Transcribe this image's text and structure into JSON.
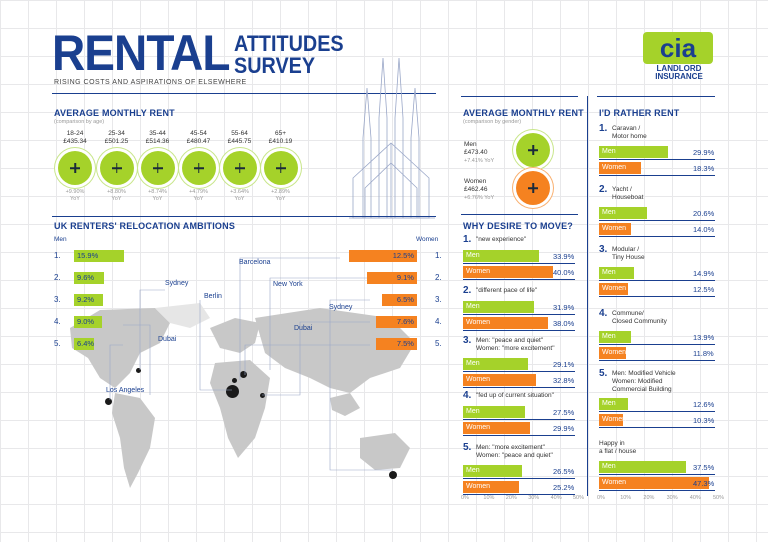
{
  "header": {
    "title_main": "RENTAL",
    "title_line1": "ATTITUDES",
    "title_line2": "SURVEY",
    "subtitle": "RISING COSTS AND ASPIRATIONS OF ELSEWHERE",
    "logo_text": "cia",
    "logo_sub1": "LANDLORD",
    "logo_sub2": "INSURANCE"
  },
  "rent_by_age": {
    "title": "AVERAGE MONTHLY RENT",
    "subtitle": "(comparison by age)",
    "items": [
      {
        "age": "18-24",
        "rent": "£435.34",
        "yoy": "+9.90%",
        "yoy_unit": "YoY"
      },
      {
        "age": "25-34",
        "rent": "£501.25",
        "yoy": "+8.80%",
        "yoy_unit": "YoY"
      },
      {
        "age": "35-44",
        "rent": "£514.36",
        "yoy": "+8.74%",
        "yoy_unit": "YoY"
      },
      {
        "age": "45-54",
        "rent": "£480.47",
        "yoy": "+4.79%",
        "yoy_unit": "YoY"
      },
      {
        "age": "55-64",
        "rent": "£445.75",
        "yoy": "+3.64%",
        "yoy_unit": "YoY"
      },
      {
        "age": "65+",
        "rent": "£410.19",
        "yoy": "+2.89%",
        "yoy_unit": "YoY"
      }
    ]
  },
  "rent_by_gender": {
    "title": "AVERAGE MONTHLY RENT",
    "subtitle": "(comparison by gender)",
    "men_label": "Men",
    "men_rent": "£473.40",
    "men_yoy": "+7.41% YoY",
    "women_label": "Women",
    "women_rent": "£462.46",
    "women_yoy": "+6.76% YoY"
  },
  "relocation": {
    "title": "UK RENTERS' RELOCATION AMBITIONS",
    "men_label": "Men",
    "women_label": "Women"
  },
  "why_move": {
    "title": "WHY DESIRE TO MOVE?",
    "items": [
      {
        "num": "1.",
        "label1": "\"new experience\"",
        "label2": ""
      },
      {
        "num": "2.",
        "label1": "\"different pace of life\"",
        "label2": ""
      },
      {
        "num": "3.",
        "label1": "Men: \"peace and quiet\"",
        "label2": "Women: \"more excitement\""
      },
      {
        "num": "4.",
        "label1": "\"fed up of current situation\"",
        "label2": ""
      },
      {
        "num": "5.",
        "label1": "Men: \"more excitement\"",
        "label2": "Women: \"peace and quiet\""
      }
    ]
  },
  "rather_rent": {
    "title": "I'D RATHER RENT",
    "items": [
      {
        "num": "1.",
        "label1": "Caravan /",
        "label2": "Motor home"
      },
      {
        "num": "2.",
        "label1": "Yacht /",
        "label2": "Houseboat"
      },
      {
        "num": "3.",
        "label1": "Modular /",
        "label2": "Tiny House"
      },
      {
        "num": "4.",
        "label1": "Commune/",
        "label2": "Closed Community"
      },
      {
        "num": "5.",
        "label1": "Men: Modified  Vehicle",
        "label2": "Women: Modified",
        "label3": "Commercial Building"
      },
      {
        "num": "",
        "label1": "Happy in",
        "label2": "a flat / house"
      }
    ]
  },
  "chart_data": [
    {
      "type": "bar",
      "title": "UK RENTERS' RELOCATION AMBITIONS",
      "series": [
        {
          "name": "Men",
          "categories": [
            "1.",
            "2.",
            "3.",
            "4.",
            "5."
          ],
          "values": [
            15.9,
            9.6,
            9.2,
            9.0,
            6.4
          ],
          "cities": [
            "Sydney",
            "Berlin",
            "Dubai",
            "Los Angeles",
            ""
          ],
          "value_labels": [
            "15.9%",
            "9.6%",
            "9.2%",
            "9.0%",
            "6.4%"
          ]
        },
        {
          "name": "Women",
          "categories": [
            "1.",
            "2.",
            "3.",
            "4.",
            "5."
          ],
          "values": [
            12.5,
            9.1,
            6.5,
            7.6,
            7.5
          ],
          "cities": [
            "Barcelona",
            "New York",
            "Sydney",
            "Dubai",
            ""
          ],
          "value_labels": [
            "12.5%",
            "9.1%",
            "6.5%",
            "7.6%",
            "7.5%"
          ]
        }
      ]
    },
    {
      "type": "bar",
      "title": "WHY DESIRE TO MOVE?",
      "categories": [
        "1.",
        "2.",
        "3.",
        "4.",
        "5."
      ],
      "series": [
        {
          "name": "Men",
          "values": [
            33.9,
            31.9,
            29.1,
            27.5,
            26.5
          ],
          "value_labels": [
            "33.9%",
            "31.9%",
            "29.1%",
            "27.5%",
            "26.5%"
          ]
        },
        {
          "name": "Women",
          "values": [
            40.0,
            38.0,
            32.8,
            29.9,
            25.2
          ],
          "value_labels": [
            "40.0%",
            "38.0%",
            "32.8%",
            "29.9%",
            "25.2%"
          ]
        }
      ],
      "x_ticks": [
        "0%",
        "10%",
        "20%",
        "30%",
        "40%",
        "50%"
      ],
      "xlim": [
        0,
        50
      ]
    },
    {
      "type": "bar",
      "title": "I'D RATHER RENT",
      "categories": [
        "1.",
        "2.",
        "3.",
        "4.",
        "5.",
        "Happy in a flat / house"
      ],
      "series": [
        {
          "name": "Men",
          "values": [
            29.9,
            20.6,
            14.9,
            13.9,
            12.6,
            37.5
          ],
          "value_labels": [
            "29.9%",
            "20.6%",
            "14.9%",
            "13.9%",
            "12.6%",
            "37.5%"
          ]
        },
        {
          "name": "Women",
          "values": [
            18.3,
            14.0,
            12.5,
            11.8,
            10.3,
            47.3
          ],
          "value_labels": [
            "18.3%",
            "14.0%",
            "12.5%",
            "11.8%",
            "10.3%",
            "47.3%"
          ]
        }
      ],
      "x_ticks": [
        "0%",
        "10%",
        "20%",
        "30%",
        "40%",
        "50%"
      ],
      "xlim": [
        0,
        50
      ]
    }
  ],
  "colors": {
    "navy": "#1a3f8f",
    "green": "#a5d22a",
    "orange": "#f58220"
  }
}
